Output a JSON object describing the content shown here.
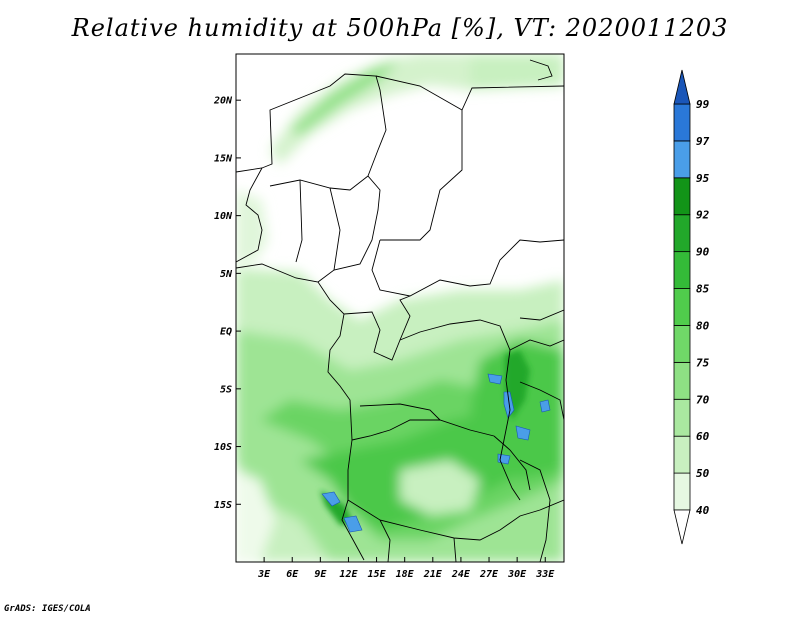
{
  "title": "Relative humidity at 500hPa [%], VT: 2020011203",
  "footer": "GrADS: IGES/COLA",
  "map": {
    "lon_range": [
      0,
      35
    ],
    "lat_range": [
      -20,
      24
    ],
    "lat_ticks": [
      "20N",
      "15N",
      "10N",
      "5N",
      "EQ",
      "5S",
      "10S",
      "15S"
    ],
    "lon_ticks": [
      "3E",
      "6E",
      "9E",
      "12E",
      "15E",
      "18E",
      "21E",
      "24E",
      "27E",
      "30E",
      "33E"
    ],
    "variable": "relative humidity",
    "level": "500hPa",
    "units": "%"
  },
  "colorbar": {
    "labels": [
      "40",
      "50",
      "60",
      "70",
      "75",
      "80",
      "85",
      "90",
      "92",
      "95",
      "97",
      "99"
    ],
    "colors": [
      "#ffffff",
      "#e6f8e2",
      "#c8f0c0",
      "#aae8a0",
      "#8ee084",
      "#70d868",
      "#50cc4c",
      "#34bb38",
      "#22a82a",
      "#129418",
      "#4a9ee8",
      "#2a78d8",
      "#1a56b8"
    ]
  }
}
